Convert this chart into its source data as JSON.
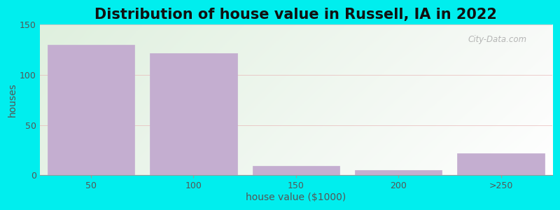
{
  "title": "Distribution of house value in Russell, IA in 2022",
  "xlabel": "house value ($1000)",
  "ylabel": "houses",
  "categories": [
    "50",
    "100",
    "150",
    "200",
    ">250"
  ],
  "values": [
    130,
    122,
    9,
    5,
    22
  ],
  "bar_color": "#c4aed0",
  "bar_edgecolor": "#c4aed0",
  "ylim": [
    0,
    150
  ],
  "yticks": [
    0,
    50,
    100,
    150
  ],
  "background_color": "#00eeee",
  "plot_bg_color_topleft": "#dff0de",
  "plot_bg_color_right": "#f5f5f5",
  "title_fontsize": 15,
  "axis_label_fontsize": 10,
  "tick_fontsize": 9,
  "watermark": "City-Data.com",
  "grid_color": "#e8b8b8",
  "figsize": [
    8.0,
    3.0
  ],
  "dpi": 100
}
